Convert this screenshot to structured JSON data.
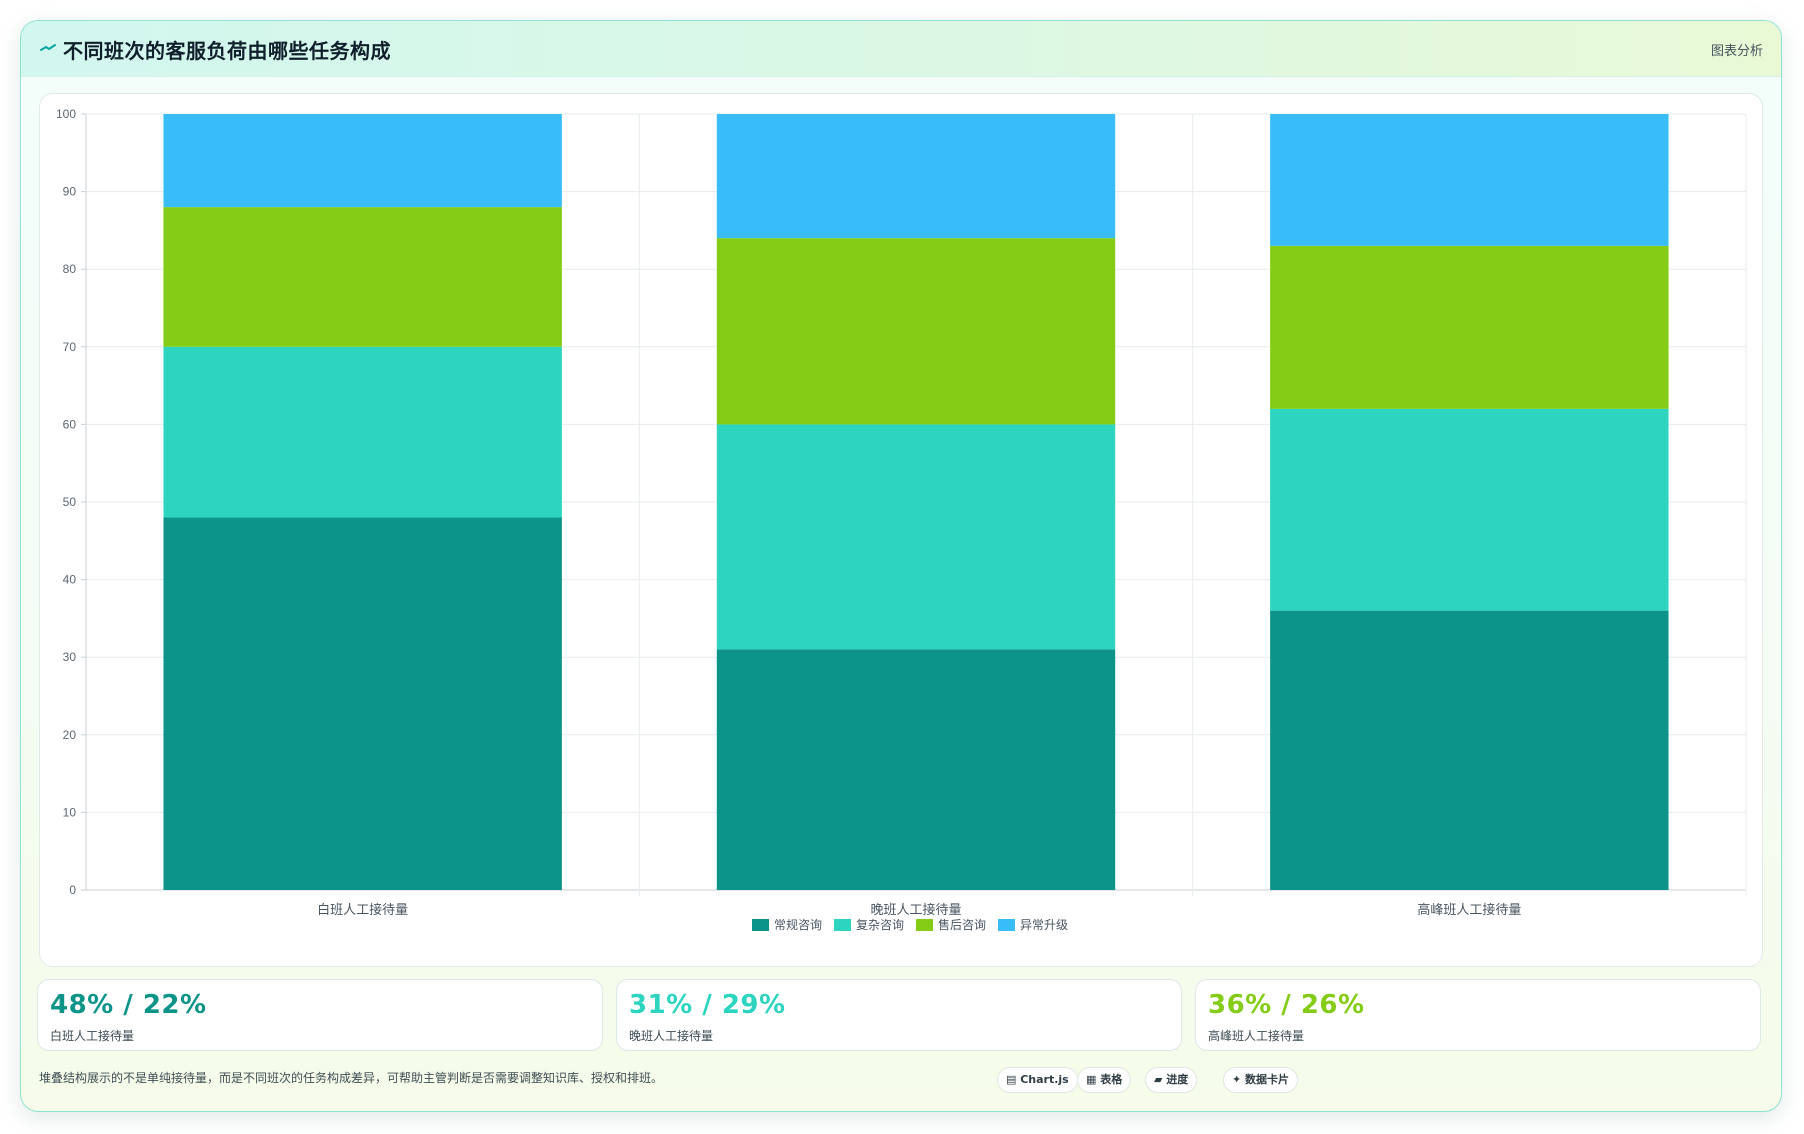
{
  "header": {
    "title": "不同班次的客服负荷由哪些任务构成",
    "action_label": "图表分析"
  },
  "chart_data": {
    "type": "bar",
    "stacked": true,
    "title": "",
    "xlabel": "",
    "ylabel": "",
    "ylim": [
      0,
      100
    ],
    "yticks": [
      0,
      10,
      20,
      30,
      40,
      50,
      60,
      70,
      80,
      90,
      100
    ],
    "categories": [
      "白班人工接待量",
      "晚班人工接待量",
      "高峰班人工接待量"
    ],
    "series": [
      {
        "name": "常规咨询",
        "color": "#0d9488",
        "values": [
          48,
          31,
          36
        ]
      },
      {
        "name": "复杂咨询",
        "color": "#2dd4bf",
        "values": [
          22,
          29,
          26
        ]
      },
      {
        "name": "售后咨询",
        "color": "#84cc16",
        "values": [
          18,
          24,
          21
        ]
      },
      {
        "name": "异常升级",
        "color": "#38bdf8",
        "values": [
          12,
          16,
          17
        ]
      }
    ],
    "legend_position": "bottom-center",
    "grid": true
  },
  "stats": [
    {
      "value": "48% / 22%",
      "label": "白班人工接待量",
      "color": "#0d9488"
    },
    {
      "value": "31% / 29%",
      "label": "晚班人工接待量",
      "color": "#2dd4bf"
    },
    {
      "value": "36% / 26%",
      "label": "高峰班人工接待量",
      "color": "#84cc16"
    }
  ],
  "footer": {
    "note": "堆叠结构展示的不是单纯接待量，而是不同班次的任务构成差异，可帮助主管判断是否需要调整知识库、授权和排班。",
    "tags": [
      "▤ Chart.js",
      "▦ 表格",
      "▰ 进度",
      "✦ 数据卡片"
    ]
  }
}
